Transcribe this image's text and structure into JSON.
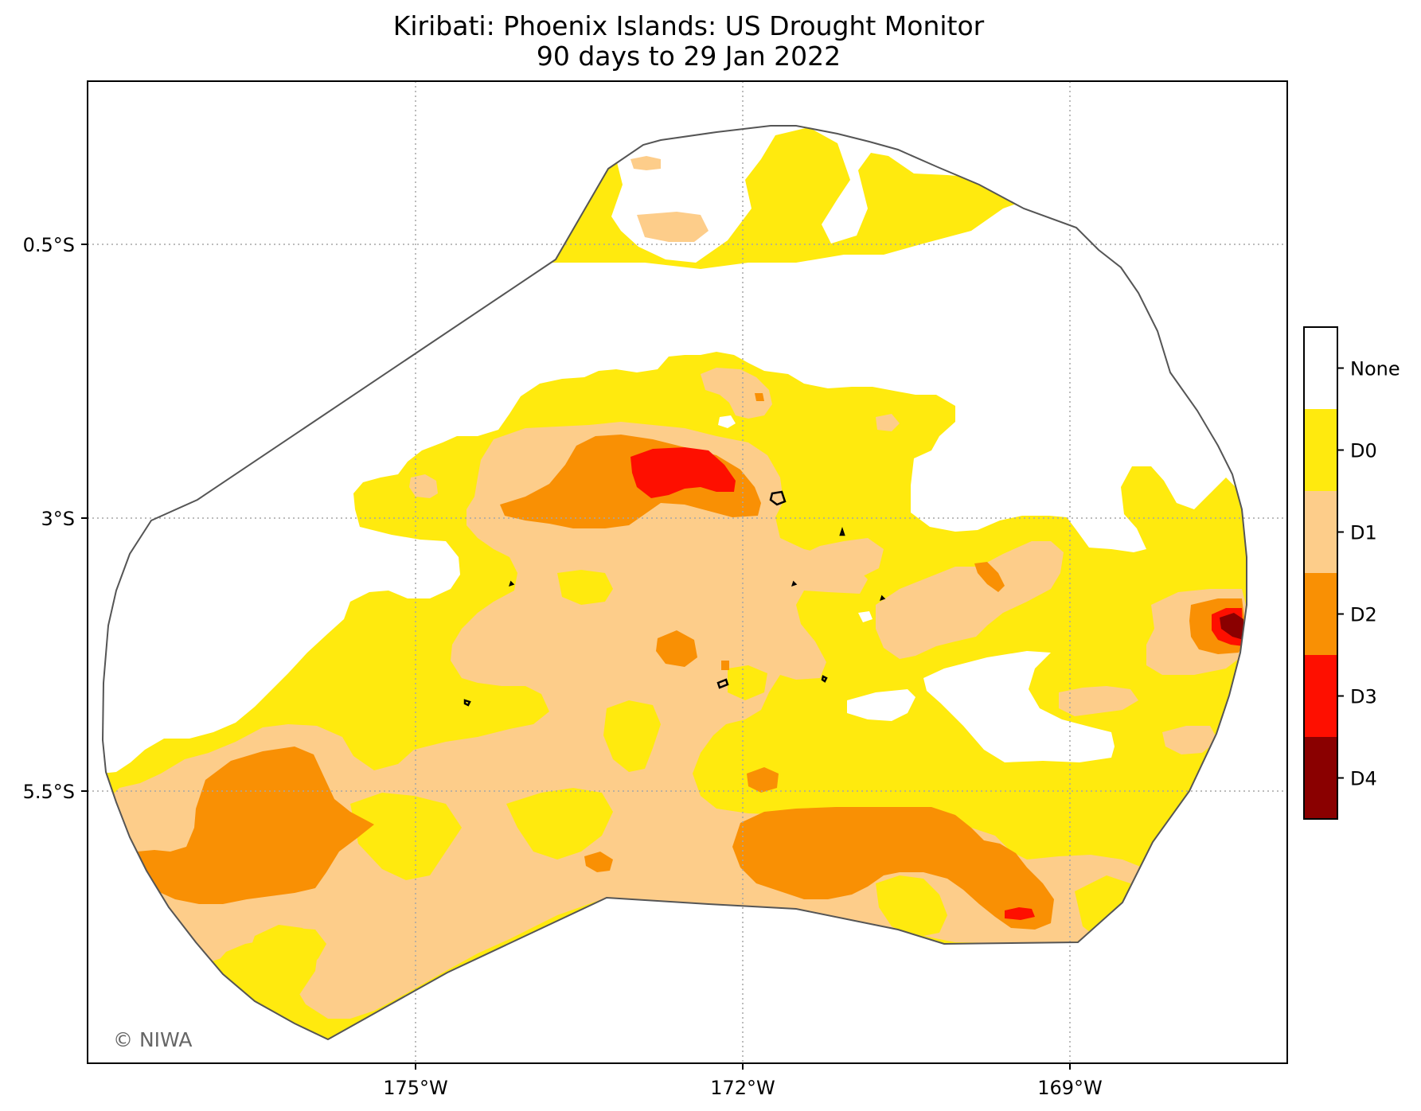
{
  "title": {
    "line1": "Kiribati: Phoenix Islands: US Drought Monitor",
    "line2": "90 days to 29 Jan 2022"
  },
  "axes": {
    "x_ticks": [
      "175°W",
      "172°W",
      "169°W"
    ],
    "y_ticks": [
      "0.5°S",
      "3°S",
      "5.5°S"
    ]
  },
  "legend": {
    "categories": [
      {
        "label": "None",
        "color": "#ffffff"
      },
      {
        "label": "D0",
        "color": "#ffea0e"
      },
      {
        "label": "D1",
        "color": "#fdcd8a"
      },
      {
        "label": "D2",
        "color": "#f99004"
      },
      {
        "label": "D3",
        "color": "#fe0f00"
      },
      {
        "label": "D4",
        "color": "#8a0000"
      }
    ]
  },
  "credit": "© NIWA",
  "colors": {
    "boundary": "#555555",
    "gridline": "#a6a6a6",
    "island": "#000000"
  }
}
